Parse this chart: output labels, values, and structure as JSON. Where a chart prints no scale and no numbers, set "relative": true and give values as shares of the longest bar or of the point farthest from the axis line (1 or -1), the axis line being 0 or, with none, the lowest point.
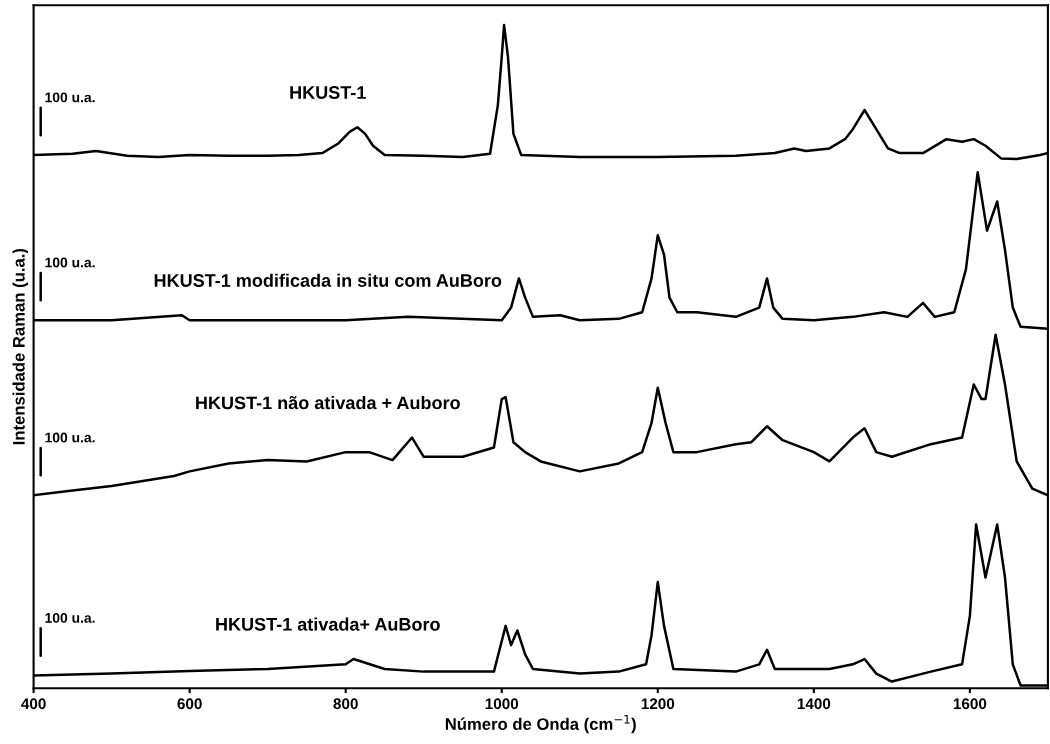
{
  "chart_data": {
    "type": "line",
    "relative": true,
    "xlabel": "Número de Onda (cm$^{−1}$)",
    "ylabel": "Intensidade Raman (u.a.)",
    "xlim": [
      400,
      1700
    ],
    "xticks": [
      400,
      600,
      800,
      1000,
      1200,
      1400,
      1600
    ],
    "grid": false,
    "legend": false,
    "marker": "none",
    "line_style": "solid",
    "annotations": [
      "100 u.a.",
      "100 u.a.",
      "100 u.a.",
      "100 u.a."
    ],
    "series": [
      {
        "name": "HKUST-1",
        "color": "#000000",
        "x": [
          400,
          450,
          480,
          520,
          560,
          600,
          650,
          700,
          740,
          770,
          790,
          805,
          815,
          825,
          835,
          850,
          900,
          950,
          985,
          995,
          1000,
          1003,
          1008,
          1015,
          1025,
          1100,
          1200,
          1300,
          1350,
          1375,
          1390,
          1420,
          1440,
          1450,
          1465,
          1480,
          1495,
          1510,
          1540,
          1570,
          1590,
          1605,
          1620,
          1640,
          1660,
          1690,
          1700
        ],
        "values": [
          0.804,
          0.806,
          0.81,
          0.803,
          0.801,
          0.804,
          0.803,
          0.803,
          0.804,
          0.807,
          0.821,
          0.839,
          0.846,
          0.836,
          0.818,
          0.804,
          0.803,
          0.801,
          0.806,
          0.879,
          0.952,
          1.0,
          0.952,
          0.836,
          0.804,
          0.801,
          0.801,
          0.803,
          0.807,
          0.814,
          0.81,
          0.814,
          0.828,
          0.843,
          0.872,
          0.843,
          0.814,
          0.807,
          0.807,
          0.828,
          0.824,
          0.828,
          0.818,
          0.799,
          0.798,
          0.804,
          0.807
        ]
      },
      {
        "name": "HKUST-1 modificada in situ com AuBoro",
        "color": "#000000",
        "x": [
          400,
          500,
          590,
          600,
          700,
          800,
          880,
          1000,
          1012,
          1022,
          1030,
          1040,
          1075,
          1100,
          1150,
          1180,
          1192,
          1200,
          1208,
          1215,
          1225,
          1250,
          1300,
          1330,
          1340,
          1348,
          1360,
          1400,
          1450,
          1490,
          1520,
          1540,
          1555,
          1580,
          1595,
          1610,
          1622,
          1635,
          1645,
          1655,
          1665,
          1700
        ],
        "values": [
          0.555,
          0.555,
          0.5625,
          0.555,
          0.555,
          0.555,
          0.56,
          0.555,
          0.574,
          0.618,
          0.589,
          0.56,
          0.5625,
          0.555,
          0.557,
          0.567,
          0.618,
          0.683,
          0.654,
          0.589,
          0.567,
          0.567,
          0.56,
          0.574,
          0.618,
          0.574,
          0.557,
          0.555,
          0.56,
          0.567,
          0.56,
          0.581,
          0.56,
          0.567,
          0.632,
          0.778,
          0.69,
          0.734,
          0.661,
          0.574,
          0.545,
          0.542
        ]
      },
      {
        "name": "HKUST-1 não ativada + Auboro",
        "color": "#000000",
        "x": [
          400,
          450,
          500,
          580,
          600,
          650,
          700,
          750,
          800,
          830,
          860,
          885,
          900,
          950,
          990,
          1000,
          1005,
          1015,
          1030,
          1050,
          1100,
          1150,
          1180,
          1192,
          1200,
          1210,
          1220,
          1250,
          1300,
          1320,
          1340,
          1360,
          1400,
          1420,
          1450,
          1465,
          1480,
          1500,
          1550,
          1590,
          1605,
          1615,
          1620,
          1633,
          1645,
          1660,
          1680,
          1700
        ],
        "values": [
          0.291,
          0.298,
          0.305,
          0.32,
          0.327,
          0.339,
          0.344,
          0.342,
          0.356,
          0.356,
          0.344,
          0.378,
          0.349,
          0.349,
          0.363,
          0.436,
          0.439,
          0.371,
          0.356,
          0.342,
          0.327,
          0.339,
          0.356,
          0.4,
          0.453,
          0.4,
          0.356,
          0.356,
          0.368,
          0.371,
          0.395,
          0.374,
          0.356,
          0.342,
          0.378,
          0.392,
          0.356,
          0.349,
          0.368,
          0.378,
          0.458,
          0.436,
          0.436,
          0.533,
          0.458,
          0.342,
          0.301,
          0.291
        ]
      },
      {
        "name": "HKUST-1 ativada+ AuBoro",
        "color": "#000000",
        "x": [
          400,
          500,
          600,
          700,
          800,
          810,
          850,
          900,
          990,
          1005,
          1012,
          1020,
          1030,
          1040,
          1100,
          1150,
          1185,
          1192,
          1200,
          1208,
          1220,
          1300,
          1330,
          1340,
          1350,
          1420,
          1450,
          1465,
          1480,
          1500,
          1550,
          1590,
          1600,
          1608,
          1620,
          1635,
          1645,
          1655,
          1665,
          1700
        ],
        "values": [
          0.019,
          0.022,
          0.026,
          0.029,
          0.036,
          0.044,
          0.029,
          0.025,
          0.025,
          0.094,
          0.065,
          0.087,
          0.051,
          0.029,
          0.022,
          0.025,
          0.036,
          0.08,
          0.16,
          0.094,
          0.029,
          0.025,
          0.036,
          0.058,
          0.029,
          0.029,
          0.036,
          0.044,
          0.022,
          0.01,
          0.025,
          0.036,
          0.109,
          0.247,
          0.167,
          0.247,
          0.167,
          0.036,
          0.004,
          0.004
        ]
      }
    ]
  }
}
